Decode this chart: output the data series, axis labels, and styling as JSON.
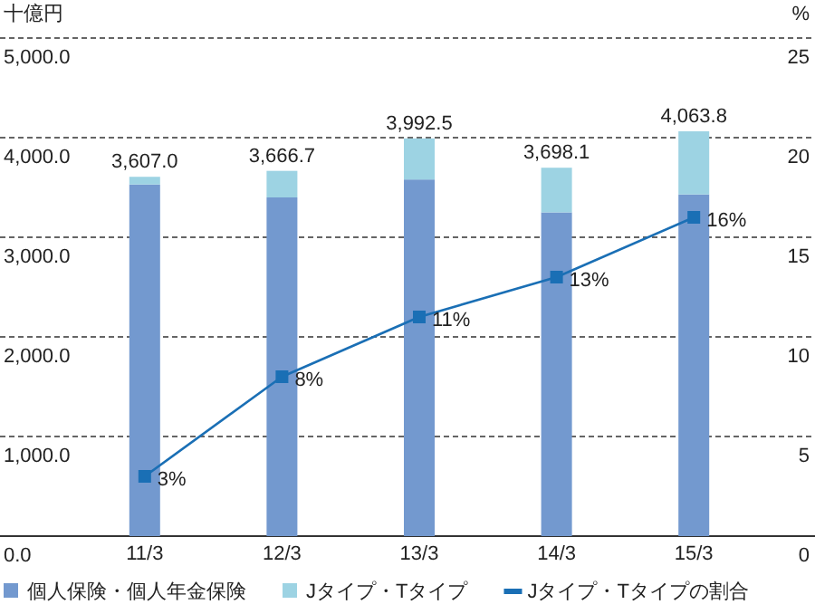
{
  "chart_data": {
    "type": "bar",
    "stacked": true,
    "ylabel": "十億円",
    "y2label": "%",
    "categories": [
      "11/3",
      "12/3",
      "13/3",
      "14/3",
      "15/3"
    ],
    "series": [
      {
        "name": "個人保険・個人年金保険",
        "color": "#7399cf",
        "values": [
          3530,
          3400,
          3580,
          3250,
          3430
        ]
      },
      {
        "name": "Jタイプ・Tタイプ",
        "color": "#9dd3e3",
        "values": [
          77,
          266.7,
          412.5,
          448.1,
          633.8
        ]
      },
      {
        "name": "Jタイプ・Tタイプの割合",
        "type": "line",
        "axis": "y2",
        "color": "#1a6fb5",
        "values": [
          3,
          8,
          11,
          13,
          16
        ],
        "value_labels": [
          "3%",
          "8%",
          "11%",
          "13%",
          "16%"
        ]
      }
    ],
    "totals": [
      "3,607.0",
      "3,666.7",
      "3,992.5",
      "3,698.1",
      "4,063.8"
    ],
    "ylim": [
      0,
      5000
    ],
    "yticks": [
      {
        "value": 0,
        "label": "0.0"
      },
      {
        "value": 1000,
        "label": "1,000.0"
      },
      {
        "value": 2000,
        "label": "2,000.0"
      },
      {
        "value": 3000,
        "label": "3,000.0"
      },
      {
        "value": 4000,
        "label": "4,000.0"
      },
      {
        "value": 5000,
        "label": "5,000.0"
      }
    ],
    "y2lim": [
      0,
      25
    ],
    "y2ticks": [
      0,
      5,
      10,
      15,
      20,
      25
    ],
    "grid": "y",
    "legend": "bottom",
    "marker": "square",
    "line_style": "solid"
  }
}
